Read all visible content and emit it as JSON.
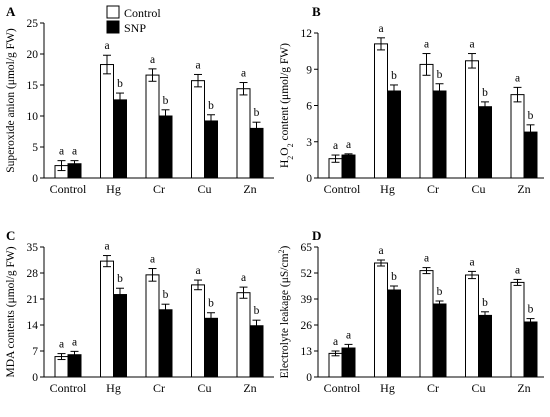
{
  "colors": {
    "control": "#ffffff",
    "snp": "#000000",
    "axis": "#000000"
  },
  "legend": {
    "control_label": "Control",
    "snp_label": "SNP",
    "placement": "top-left of panel A"
  },
  "chart_data": [
    {
      "panel": "A",
      "type": "bar",
      "ylabel": "Superoxide anion (μmol/g FW)",
      "categories": [
        "Control",
        "Hg",
        "Cr",
        "Cu",
        "Zn"
      ],
      "ylim": [
        0,
        25
      ],
      "yticks": [
        0,
        5,
        10,
        15,
        20,
        25
      ],
      "series": [
        {
          "name": "Control",
          "values": [
            2.0,
            18.3,
            16.6,
            15.7,
            14.4
          ],
          "errors": [
            0.8,
            1.5,
            1.0,
            1.0,
            1.0
          ],
          "labels": [
            "a",
            "a",
            "a",
            "a",
            "a"
          ]
        },
        {
          "name": "SNP",
          "values": [
            2.3,
            12.6,
            10.0,
            9.2,
            8.0
          ],
          "errors": [
            0.5,
            1.1,
            1.0,
            1.0,
            1.0
          ],
          "labels": [
            "a",
            "b",
            "b",
            "b",
            "b"
          ]
        }
      ]
    },
    {
      "panel": "B",
      "type": "bar",
      "ylabel": "H2O2 content (μmol/g FW)",
      "categories": [
        "Control",
        "Hg",
        "Cr",
        "Cu",
        "Zn"
      ],
      "ylim": [
        0,
        12
      ],
      "yticks": [
        0,
        3,
        6,
        9,
        12
      ],
      "series": [
        {
          "name": "Control",
          "values": [
            1.6,
            11.1,
            9.4,
            9.7,
            6.9
          ],
          "errors": [
            0.3,
            0.5,
            0.9,
            0.6,
            0.6
          ],
          "labels": [
            "a",
            "a",
            "a",
            "a",
            "a"
          ]
        },
        {
          "name": "SNP",
          "values": [
            1.9,
            7.2,
            7.2,
            5.9,
            3.8
          ],
          "errors": [
            0.1,
            0.5,
            0.6,
            0.4,
            0.6
          ],
          "labels": [
            "a",
            "b",
            "b",
            "b",
            "b"
          ]
        }
      ]
    },
    {
      "panel": "C",
      "type": "bar",
      "ylabel": "MDA contents (μmol/g FW)",
      "categories": [
        "Control",
        "Hg",
        "Cr",
        "Cu",
        "Zn"
      ],
      "ylim": [
        0,
        35
      ],
      "yticks": [
        0,
        7,
        14,
        21,
        28,
        35
      ],
      "series": [
        {
          "name": "Control",
          "values": [
            5.5,
            31.2,
            27.5,
            24.8,
            22.7
          ],
          "errors": [
            0.8,
            1.5,
            1.7,
            1.3,
            1.5
          ],
          "labels": [
            "a",
            "a",
            "a",
            "a",
            "a"
          ]
        },
        {
          "name": "SNP",
          "values": [
            6.0,
            22.2,
            18.1,
            15.8,
            13.8
          ],
          "errors": [
            0.9,
            1.7,
            1.5,
            1.5,
            1.5
          ],
          "labels": [
            "a",
            "b",
            "b",
            "b",
            "b"
          ]
        }
      ]
    },
    {
      "panel": "D",
      "type": "bar",
      "ylabel": "Electrolyte leakage (μS/cm2)",
      "categories": [
        "Control",
        "Hg",
        "Cr",
        "Cu",
        "Zn"
      ],
      "ylim": [
        0,
        65
      ],
      "yticks": [
        0,
        13,
        26,
        39,
        52,
        65
      ],
      "series": [
        {
          "name": "Control",
          "values": [
            11.8,
            57.0,
            53.2,
            51.0,
            47.3
          ],
          "errors": [
            1.2,
            1.5,
            1.5,
            1.8,
            1.5
          ],
          "labels": [
            "a",
            "a",
            "a",
            "a",
            "a"
          ]
        },
        {
          "name": "SNP",
          "values": [
            14.5,
            43.5,
            36.5,
            30.8,
            27.5
          ],
          "errors": [
            1.8,
            2.0,
            1.5,
            1.8,
            1.7
          ],
          "labels": [
            "a",
            "b",
            "b",
            "b",
            "b"
          ]
        }
      ]
    }
  ]
}
